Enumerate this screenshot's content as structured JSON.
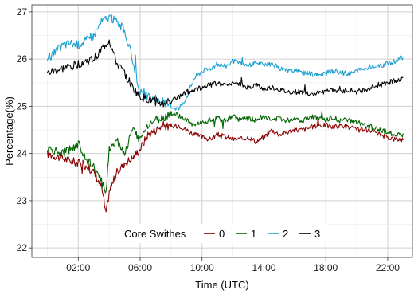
{
  "chart_data": {
    "type": "line",
    "xlabel": "Time (UTC)",
    "ylabel": "Percentage(%)",
    "xlim": [
      -1.0,
      23.6
    ],
    "ylim": [
      21.8,
      27.15
    ],
    "x_ticks": [
      2,
      6,
      10,
      14,
      18,
      22
    ],
    "x_tick_labels": [
      "02:00",
      "06:00",
      "10:00",
      "14:00",
      "18:00",
      "22:00"
    ],
    "y_ticks": [
      22,
      23,
      24,
      25,
      26,
      27
    ],
    "y_tick_labels": [
      "22",
      "23",
      "24",
      "25",
      "26",
      "27"
    ],
    "grid": true,
    "legend": {
      "title": "Core Swithes",
      "placement": "bottom-center",
      "entries": [
        "0",
        "1",
        "2",
        "3"
      ]
    },
    "series": [
      {
        "name": "0",
        "color": "#8b0000",
        "x": [
          0,
          0.5,
          1,
          1.5,
          2,
          2.5,
          3,
          3.5,
          3.8,
          4,
          4.5,
          5,
          5.5,
          6,
          6.5,
          7,
          7.5,
          8,
          8.5,
          9,
          9.5,
          10,
          10.5,
          11,
          11.5,
          12,
          12.5,
          13,
          13.5,
          14,
          14.5,
          15,
          15.5,
          16,
          16.5,
          17,
          17.5,
          18,
          18.5,
          19,
          19.5,
          20,
          20.5,
          21,
          21.5,
          22,
          22.5,
          23
        ],
        "y": [
          24.0,
          23.95,
          23.9,
          23.85,
          23.8,
          23.75,
          23.6,
          23.3,
          22.7,
          23.2,
          23.6,
          23.8,
          23.9,
          24.1,
          24.4,
          24.5,
          24.6,
          24.55,
          24.6,
          24.5,
          24.4,
          24.35,
          24.3,
          24.4,
          24.35,
          24.3,
          24.3,
          24.35,
          24.25,
          24.35,
          24.5,
          24.4,
          24.45,
          24.5,
          24.5,
          24.55,
          24.6,
          24.6,
          24.55,
          24.6,
          24.55,
          24.5,
          24.5,
          24.45,
          24.4,
          24.35,
          24.3,
          24.3
        ]
      },
      {
        "name": "1",
        "color": "#006400",
        "x": [
          0,
          0.5,
          1,
          1.5,
          2,
          2.5,
          3,
          3.5,
          3.8,
          4,
          4.5,
          5,
          5.5,
          6,
          6.5,
          7,
          7.5,
          8,
          8.5,
          9,
          9.5,
          10,
          10.5,
          11,
          11.5,
          12,
          12.5,
          13,
          13.5,
          14,
          14.5,
          15,
          15.5,
          16,
          16.5,
          17,
          17.5,
          18,
          18.5,
          19,
          19.5,
          20,
          20.5,
          21,
          21.5,
          22,
          22.5,
          23
        ],
        "y": [
          24.1,
          24.05,
          24.0,
          24.1,
          24.2,
          23.9,
          23.7,
          23.4,
          23.2,
          24.1,
          24.3,
          24.0,
          24.5,
          24.3,
          24.6,
          24.7,
          24.75,
          24.85,
          24.8,
          24.7,
          24.6,
          24.65,
          24.7,
          24.75,
          24.7,
          24.8,
          24.7,
          24.75,
          24.7,
          24.8,
          24.7,
          24.75,
          24.7,
          24.75,
          24.7,
          24.8,
          24.75,
          24.7,
          24.75,
          24.7,
          24.7,
          24.65,
          24.6,
          24.55,
          24.5,
          24.45,
          24.4,
          24.4
        ]
      },
      {
        "name": "2",
        "color": "#1a9fcf",
        "x": [
          0,
          0.5,
          1,
          1.5,
          2,
          2.5,
          3,
          3.5,
          4,
          4.5,
          5,
          5.5,
          6,
          6.5,
          7,
          7.5,
          8,
          8.5,
          9,
          9.5,
          10,
          10.5,
          11,
          11.5,
          12,
          12.5,
          13,
          13.5,
          14,
          14.5,
          15,
          15.5,
          16,
          16.5,
          17,
          17.5,
          18,
          18.5,
          19,
          19.5,
          20,
          20.5,
          21,
          21.5,
          22,
          22.5,
          23
        ],
        "y": [
          26.0,
          26.15,
          26.3,
          26.35,
          26.3,
          26.4,
          26.5,
          26.8,
          26.9,
          26.8,
          26.6,
          26.0,
          25.3,
          25.2,
          25.15,
          25.1,
          25.0,
          24.95,
          25.2,
          25.6,
          25.75,
          25.8,
          25.9,
          25.85,
          25.95,
          25.9,
          25.85,
          25.95,
          25.85,
          25.9,
          25.8,
          25.75,
          25.75,
          25.7,
          25.7,
          25.65,
          25.7,
          25.75,
          25.7,
          25.7,
          25.75,
          25.8,
          25.85,
          25.85,
          25.9,
          25.95,
          26.05
        ]
      },
      {
        "name": "3",
        "color": "#000000",
        "x": [
          0,
          0.5,
          1,
          1.5,
          2,
          2.5,
          3,
          3.5,
          4,
          4.5,
          5,
          5.5,
          6,
          6.5,
          7,
          7.5,
          8,
          8.5,
          9,
          9.5,
          10,
          10.5,
          11,
          11.5,
          12,
          12.5,
          13,
          13.5,
          14,
          14.5,
          15,
          15.5,
          16,
          16.5,
          17,
          17.5,
          18,
          18.5,
          19,
          19.5,
          20,
          20.5,
          21,
          21.5,
          22,
          22.5,
          23
        ],
        "y": [
          25.7,
          25.75,
          25.8,
          25.85,
          25.9,
          25.95,
          26.0,
          26.2,
          26.4,
          25.9,
          25.7,
          25.4,
          25.2,
          25.15,
          25.1,
          25.05,
          25.15,
          25.2,
          25.3,
          25.35,
          25.4,
          25.45,
          25.5,
          25.45,
          25.5,
          25.45,
          25.4,
          25.45,
          25.35,
          25.4,
          25.35,
          25.3,
          25.3,
          25.3,
          25.25,
          25.3,
          25.3,
          25.35,
          25.3,
          25.35,
          25.3,
          25.35,
          25.4,
          25.45,
          25.5,
          25.55,
          25.6
        ]
      }
    ]
  }
}
